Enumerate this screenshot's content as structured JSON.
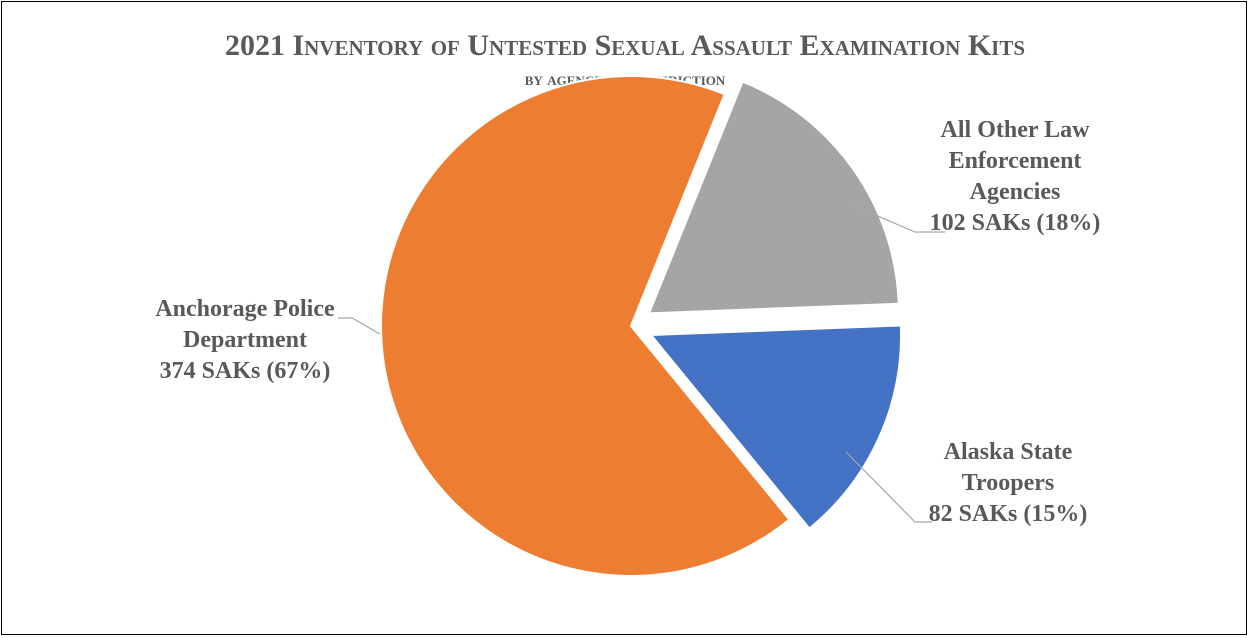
{
  "chart_data": {
    "type": "pie",
    "title": "2021 Inventory of Untested Sexual Assault Examination Kits",
    "subtitle": "by agency of jurisdiction",
    "unit": "SAKs",
    "slices": [
      {
        "name": "All Other Law Enforcement Agencies",
        "label_lines": [
          "All Other Law",
          "Enforcement",
          "Agencies",
          "102 SAKs (18%)"
        ],
        "value": 102,
        "percent": 18,
        "color": "#a5a5a5",
        "exploded": true
      },
      {
        "name": "Alaska State Troopers",
        "label_lines": [
          "Alaska State",
          "Troopers",
          "82 SAKs (15%)"
        ],
        "value": 82,
        "percent": 15,
        "color": "#4472c4",
        "exploded": true
      },
      {
        "name": "Anchorage Police Department",
        "label_lines": [
          "Anchorage Police",
          "Department",
          "374 SAKs (67%)"
        ],
        "value": 374,
        "percent": 67,
        "color": "#ed7d31",
        "exploded": false
      }
    ],
    "legend": "none",
    "labels": "outside-with-leader-lines"
  }
}
